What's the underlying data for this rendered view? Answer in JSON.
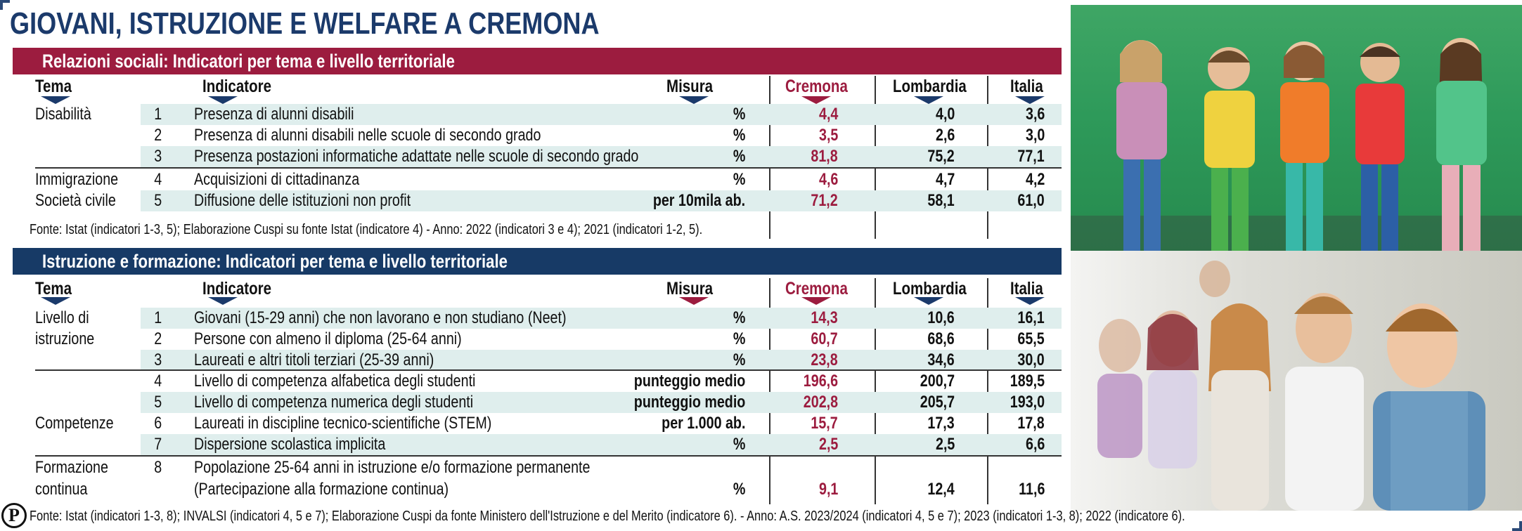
{
  "title": "GIOVANI, ISTRUZIONE E WELFARE A CREMONA",
  "headers": {
    "tema": "Tema",
    "indicatore": "Indicatore",
    "misura": "Misura",
    "cremona": "Cremona",
    "lombardia": "Lombardia",
    "italia": "Italia"
  },
  "section1": {
    "title": "Relazioni sociali: Indicatori per tema e livello territoriale",
    "temi": [
      "Disabilità",
      "Immigrazione",
      "Società civile"
    ],
    "rows": [
      {
        "n": "1",
        "indicatore": "Presenza di alunni disabili",
        "misura": "%",
        "cremona": "4,4",
        "lombardia": "4,0",
        "italia": "3,6"
      },
      {
        "n": "2",
        "indicatore": "Presenza di alunni disabili nelle scuole di secondo grado",
        "misura": "%",
        "cremona": "3,5",
        "lombardia": "2,6",
        "italia": "3,0"
      },
      {
        "n": "3",
        "indicatore": "Presenza postazioni informatiche adattate nelle scuole di secondo grado",
        "misura": "%",
        "cremona": "81,8",
        "lombardia": "75,2",
        "italia": "77,1"
      },
      {
        "n": "4",
        "indicatore": "Acquisizioni di cittadinanza",
        "misura": "%",
        "cremona": "4,6",
        "lombardia": "4,7",
        "italia": "4,2"
      },
      {
        "n": "5",
        "indicatore": "Diffusione delle istituzioni non profit",
        "misura": "per 10mila ab.",
        "cremona": "71,2",
        "lombardia": "58,1",
        "italia": "61,0"
      }
    ],
    "fonte": "Fonte: Istat (indicatori 1-3, 5); Elaborazione Cuspi su fonte Istat (indicatore 4)    -   Anno: 2022 (indicatori 3 e 4); 2021 (indicatori 1-2, 5)."
  },
  "section2": {
    "title": "Istruzione e formazione: Indicatori per tema e livello territoriale",
    "temi": {
      "livello_1": "Livello di",
      "livello_2": "istruzione",
      "competenze": "Competenze",
      "formazione_1": "Formazione",
      "formazione_2": "continua"
    },
    "rows": [
      {
        "n": "1",
        "indicatore": "Giovani (15-29 anni) che non lavorano e non studiano (Neet)",
        "misura": "%",
        "cremona": "14,3",
        "lombardia": "10,6",
        "italia": "16,1"
      },
      {
        "n": "2",
        "indicatore": "Persone con almeno il diploma (25-64 anni)",
        "misura": "%",
        "cremona": "60,7",
        "lombardia": "68,6",
        "italia": "65,5"
      },
      {
        "n": "3",
        "indicatore": "Laureati e altri titoli terziari (25-39 anni)",
        "misura": "%",
        "cremona": "23,8",
        "lombardia": "34,6",
        "italia": "30,0"
      },
      {
        "n": "4",
        "indicatore": "Livello di competenza alfabetica degli studenti",
        "misura": "punteggio medio",
        "cremona": "196,6",
        "lombardia": "200,7",
        "italia": "189,5"
      },
      {
        "n": "5",
        "indicatore": "Livello di competenza numerica degli studenti",
        "misura": "punteggio medio",
        "cremona": "202,8",
        "lombardia": "205,7",
        "italia": "193,0"
      },
      {
        "n": "6",
        "indicatore": "Laureati in discipline tecnico-scientifiche (STEM)",
        "misura": "per 1.000 ab.",
        "cremona": "15,7",
        "lombardia": "17,3",
        "italia": "17,8"
      },
      {
        "n": "7",
        "indicatore": "Dispersione scolastica implicita",
        "misura": "%",
        "cremona": "2,5",
        "lombardia": "2,5",
        "italia": "6,6"
      },
      {
        "n": "8",
        "indicatore": "Popolazione 25-64 anni in istruzione e/o formazione permanente",
        "indicatore_2": "(Partecipazione alla formazione continua)",
        "misura": "%",
        "cremona": "9,1",
        "lombardia": "12,4",
        "italia": "11,6"
      }
    ],
    "fonte": "Fonte: Istat (indicatori 1-3, 8); INVALSI (indicatori 4, 5 e 7); Elaborazione Cuspi da fonte Ministero dell'Istruzione e del Merito (indicatore 6).  -  Anno: A.S. 2023/2024 (indicatori 4, 5 e 7); 2023 (indicatori 1-3, 8); 2022 (indicatore 6)."
  },
  "logo_letter": "P",
  "colors": {
    "navy": "#173a66",
    "bordeaux": "#9c1c3f",
    "row_tint": "#dfeeed"
  }
}
